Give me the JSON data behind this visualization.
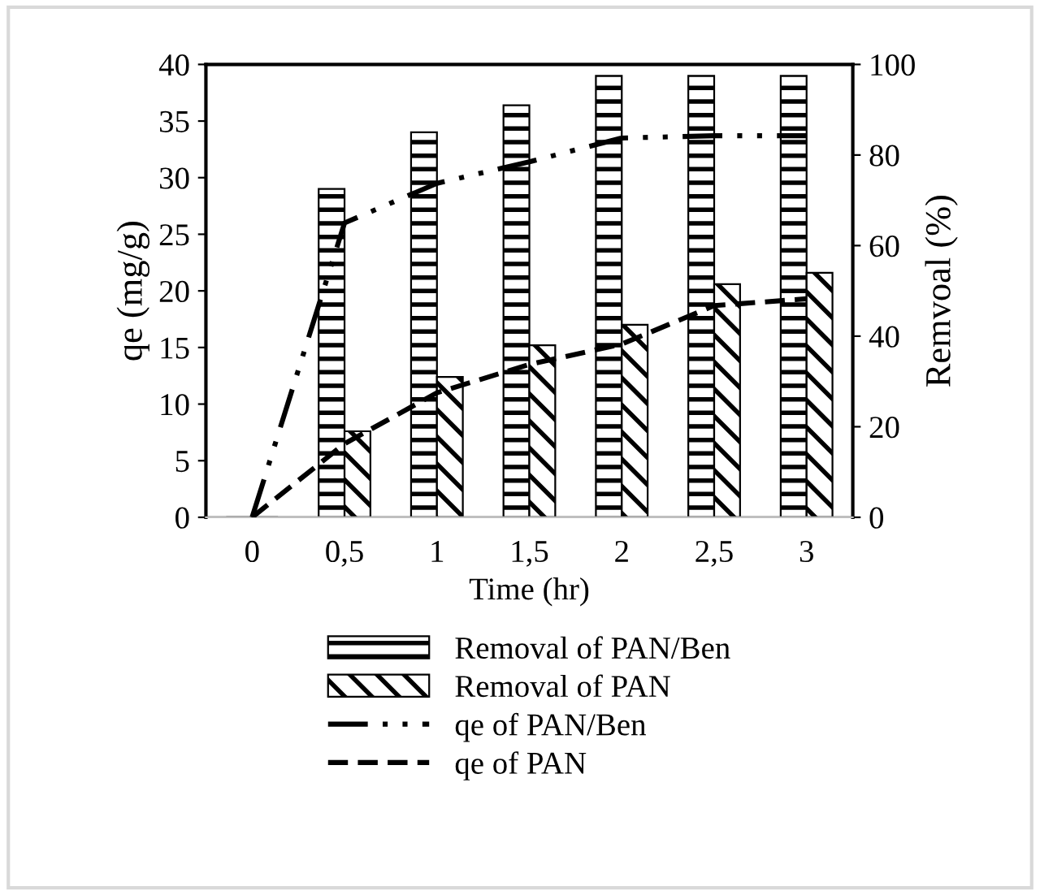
{
  "chart_data": {
    "type": "bar",
    "xlabel": "Time (hr)",
    "ylabel": "qe (mg/g)",
    "y2label": "Remvoal (%)",
    "categories": [
      "0",
      "0,5",
      "1",
      "1,5",
      "2",
      "2,5",
      "3"
    ],
    "series": [
      {
        "name": "Removal of PAN/Ben",
        "axis": "y2",
        "color": "#000000",
        "values": [
          0,
          72.5,
          85,
          91,
          97.5,
          97.5,
          97.5
        ]
      },
      {
        "name": "Removal of PAN",
        "axis": "y2",
        "color": "#000000",
        "values": [
          0,
          19,
          31,
          38,
          42.5,
          51.5,
          54
        ]
      },
      {
        "name": "qe of PAN/Ben",
        "type": "line",
        "axis": "y",
        "color": "#000000",
        "line_style": "dashdot",
        "values": [
          0,
          26,
          29.5,
          31.4,
          33.5,
          33.7,
          33.7
        ]
      },
      {
        "name": "qe of PAN",
        "type": "line",
        "axis": "y",
        "color": "#000000",
        "line_style": "dashed",
        "values": [
          0,
          6.5,
          11,
          13.5,
          15.3,
          18.7,
          19.3
        ]
      }
    ],
    "ylim": [
      0,
      40
    ],
    "yticks": [
      0,
      5,
      10,
      15,
      20,
      25,
      30,
      35,
      40
    ],
    "y2lim": [
      0,
      100
    ],
    "y2ticks": [
      0,
      20,
      40,
      60,
      80,
      100
    ],
    "grid": false,
    "legend": "bottom",
    "marker": "none"
  }
}
